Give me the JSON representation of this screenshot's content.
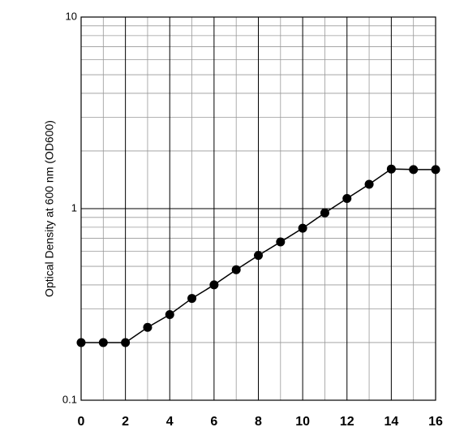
{
  "chart_data": {
    "type": "line",
    "y_label": "Optical Density at 600 nm (OD600)",
    "x": [
      0,
      1,
      2,
      3,
      4,
      5,
      6,
      7,
      8,
      9,
      10,
      11,
      12,
      13,
      14,
      15,
      16
    ],
    "values": [
      0.2,
      0.2,
      0.2,
      0.24,
      0.28,
      0.34,
      0.4,
      0.48,
      0.57,
      0.67,
      0.79,
      0.95,
      1.13,
      1.34,
      1.61,
      1.6,
      1.6
    ],
    "color": "#000000",
    "xlim": [
      0,
      16
    ],
    "xticks": [
      0,
      2,
      4,
      6,
      8,
      10,
      12,
      14,
      16
    ],
    "xticks_minor": [
      1,
      3,
      5,
      7,
      9,
      11,
      13,
      15
    ],
    "ylim": [
      0.1,
      10
    ],
    "yticks": [
      0.1,
      1,
      10
    ],
    "yticks_minor": [
      0.2,
      0.3,
      0.4,
      0.5,
      0.6,
      0.7,
      0.8,
      0.9,
      2,
      3,
      4,
      5,
      6,
      7,
      8,
      9
    ],
    "log_y": true,
    "grid": true
  }
}
